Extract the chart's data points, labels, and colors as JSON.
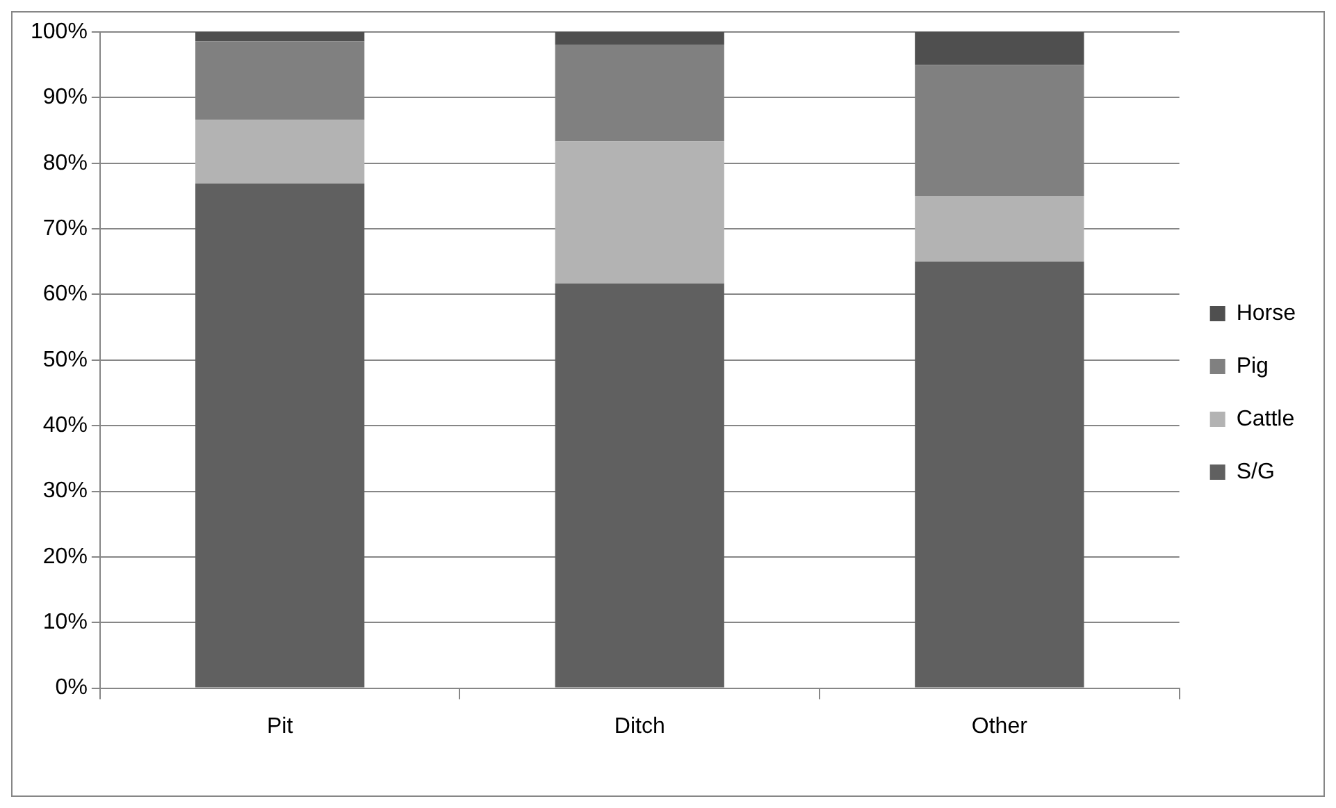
{
  "chart_data": {
    "type": "bar",
    "stacked": true,
    "categories": [
      "Pit",
      "Ditch",
      "Other"
    ],
    "series": [
      {
        "name": "S/G",
        "color": "#606060",
        "values": [
          76.9,
          61.7,
          65
        ]
      },
      {
        "name": "Cattle",
        "color": "#b3b3b3",
        "values": [
          9.7,
          21.6,
          10
        ]
      },
      {
        "name": "Pig",
        "color": "#808080",
        "values": [
          12,
          14.7,
          20
        ]
      },
      {
        "name": "Horse",
        "color": "#4f4f4f",
        "values": [
          1.4,
          2,
          5
        ]
      }
    ],
    "ylim": [
      0,
      100
    ],
    "yticks": [
      {
        "value": 0,
        "label": "0%"
      },
      {
        "value": 10,
        "label": "10%"
      },
      {
        "value": 20,
        "label": "20%"
      },
      {
        "value": 30,
        "label": "30%"
      },
      {
        "value": 40,
        "label": "40%"
      },
      {
        "value": 50,
        "label": "50%"
      },
      {
        "value": 60,
        "label": "60%"
      },
      {
        "value": 70,
        "label": "70%"
      },
      {
        "value": 80,
        "label": "80%"
      },
      {
        "value": 90,
        "label": "90%"
      },
      {
        "value": 100,
        "label": "100%"
      }
    ],
    "grid": "y",
    "legend": "right"
  }
}
